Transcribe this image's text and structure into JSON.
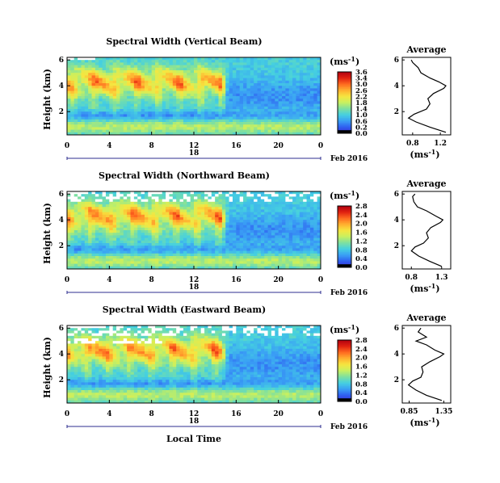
{
  "figure": {
    "xlabel": "Local Time",
    "ylabel": "Height (km)",
    "date_label": "Feb 2016",
    "day_label": "18",
    "unit_label": "(ms",
    "unit_sup": "-1",
    "unit_close": ")",
    "average_title": "Average",
    "average_xlabel": "(ms",
    "average_xlabel_sup": "-1",
    "average_xlabel_close": ")"
  },
  "colors": {
    "scale": [
      "#000000",
      "#3b2bd6",
      "#2f5ff0",
      "#3aa0f5",
      "#45d0e0",
      "#7ee0a0",
      "#c8f060",
      "#f6e640",
      "#ffb030",
      "#ff6a20",
      "#e02010",
      "#b00010"
    ],
    "missing": "#ffffff"
  },
  "chart_data": [
    {
      "type": "heatmap",
      "title": "Spectral Width (Vertical Beam)",
      "x_ticks": [
        "0",
        "4",
        "8",
        "12",
        "16",
        "20",
        "0"
      ],
      "xlim": [
        0,
        24
      ],
      "y_ticks": [
        "6",
        "4",
        "2"
      ],
      "ylim": [
        0.2,
        6.2
      ],
      "colorbar_ticks": [
        "3.6",
        "3.4",
        "3.0",
        "2.6",
        "2.2",
        "1.8",
        "1.4",
        "1.0",
        "0.6",
        "0.2",
        "0.0"
      ],
      "colorbar_range": [
        0.0,
        3.6
      ],
      "average_profile": {
        "title": "Average",
        "x_ticks": [
          "0.8",
          "1.2"
        ],
        "xlim": [
          0.65,
          1.35
        ],
        "heights": [
          0.4,
          0.8,
          1.2,
          1.5,
          1.8,
          2.2,
          2.6,
          3.0,
          3.4,
          3.8,
          4.0,
          4.3,
          4.6,
          5.0,
          5.4,
          5.8,
          6.0
        ],
        "values": [
          1.28,
          1.05,
          0.85,
          0.74,
          0.82,
          1.0,
          1.05,
          1.02,
          1.1,
          1.25,
          1.28,
          1.18,
          1.05,
          0.92,
          0.88,
          0.8,
          0.78
        ]
      }
    },
    {
      "type": "heatmap",
      "title": "Spectral Width (Northward Beam)",
      "x_ticks": [
        "0",
        "4",
        "8",
        "12",
        "16",
        "20",
        "0"
      ],
      "xlim": [
        0,
        24
      ],
      "y_ticks": [
        "6",
        "4",
        "2"
      ],
      "ylim": [
        0.2,
        6.2
      ],
      "colorbar_ticks": [
        "2.8",
        "2.4",
        "2.0",
        "1.6",
        "1.2",
        "0.8",
        "0.4",
        "0.0"
      ],
      "colorbar_range": [
        0.0,
        2.8
      ],
      "average_profile": {
        "title": "Average",
        "x_ticks": [
          "0.8",
          "1.3"
        ],
        "xlim": [
          0.65,
          1.45
        ],
        "heights": [
          0.4,
          0.8,
          1.2,
          1.6,
          1.9,
          2.2,
          2.6,
          3.0,
          3.4,
          3.8,
          4.0,
          4.3,
          4.7,
          5.0,
          5.4,
          5.8,
          6.0
        ],
        "values": [
          1.3,
          1.1,
          0.92,
          0.8,
          0.86,
          1.0,
          1.08,
          1.05,
          1.12,
          1.28,
          1.32,
          1.2,
          1.05,
          0.9,
          0.84,
          0.82,
          0.86
        ]
      }
    },
    {
      "type": "heatmap",
      "title": "Spectral Width (Eastward Beam)",
      "x_ticks": [
        "0",
        "4",
        "8",
        "12",
        "16",
        "20",
        "0"
      ],
      "xlim": [
        0,
        24
      ],
      "y_ticks": [
        "6",
        "4",
        "2"
      ],
      "ylim": [
        0.2,
        6.2
      ],
      "colorbar_ticks": [
        "2.8",
        "2.4",
        "2.0",
        "1.6",
        "1.2",
        "0.8",
        "0.4",
        "0.0"
      ],
      "colorbar_range": [
        0.0,
        2.8
      ],
      "average_profile": {
        "title": "Average",
        "x_ticks": [
          "0.85",
          "1.35"
        ],
        "xlim": [
          0.75,
          1.45
        ],
        "heights": [
          0.4,
          0.8,
          1.2,
          1.6,
          1.9,
          2.2,
          2.6,
          3.0,
          3.4,
          3.8,
          4.0,
          4.3,
          4.7,
          5.0,
          5.3,
          5.7,
          6.0
        ],
        "values": [
          1.32,
          1.1,
          0.95,
          0.84,
          0.9,
          1.02,
          1.05,
          1.03,
          1.15,
          1.3,
          1.35,
          1.22,
          1.1,
          0.95,
          1.1,
          0.98,
          1.02
        ]
      }
    }
  ]
}
